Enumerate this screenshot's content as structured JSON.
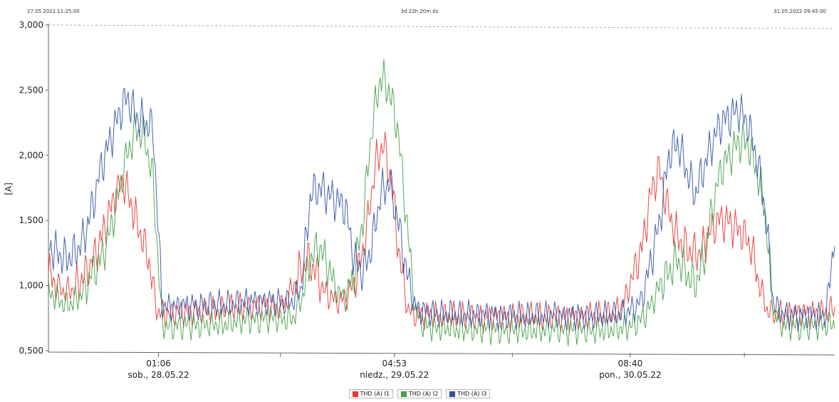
{
  "header": {
    "start": "27.05.2022 11:25:00",
    "duration": "3d 22h 20m 0s",
    "end": "31.05.2022 09:45:00"
  },
  "chart_data": {
    "type": "line",
    "title": "",
    "xlabel": "",
    "ylabel": "[A]",
    "ylim": [
      500,
      3000
    ],
    "y_ticks": [
      "0,500",
      "1,000",
      "1,500",
      "2,000",
      "2,500",
      "3,000"
    ],
    "x_ticks": [
      {
        "time": "01:06",
        "date": "sob., 28.05.22"
      },
      {
        "time": "04:53",
        "date": "niedz., 29.05.22"
      },
      {
        "time": "08:40",
        "date": "pon., 30.05.22"
      }
    ],
    "grid": false,
    "legend_position": "bottom",
    "series": [
      {
        "name": "THD (A) I1",
        "color": "#e8342f",
        "values": [
          1100,
          1000,
          950,
          980,
          1050,
          1150,
          1300,
          1500,
          1700,
          1800,
          1600,
          1400,
          1200,
          800,
          780,
          790,
          800,
          790,
          800,
          810,
          800,
          820,
          830,
          840,
          830,
          850,
          840,
          830,
          840,
          950,
          1100,
          1200,
          1100,
          950,
          900,
          880,
          950,
          1100,
          1400,
          1900,
          2100,
          1800,
          1200,
          800,
          780,
          770,
          780,
          760,
          770,
          760,
          770,
          760,
          750,
          760,
          760,
          750,
          760,
          760,
          770,
          750,
          760,
          760,
          750,
          760,
          760,
          770,
          770,
          780,
          800,
          900,
          1100,
          1300,
          1700,
          1900,
          1600,
          1400,
          1300,
          1250,
          1250,
          1400,
          1500,
          1500,
          1450,
          1400,
          1300,
          1000,
          800,
          790,
          780,
          780,
          790,
          780,
          790,
          800,
          820
        ]
      },
      {
        "name": "THD (A) I2",
        "color": "#43a047",
        "values": [
          950,
          900,
          850,
          880,
          950,
          1100,
          1200,
          1400,
          1700,
          2000,
          2200,
          2150,
          1800,
          700,
          680,
          690,
          700,
          690,
          700,
          710,
          700,
          720,
          730,
          740,
          730,
          750,
          750,
          740,
          750,
          900,
          1200,
          1300,
          1150,
          950,
          900,
          1100,
          1500,
          2200,
          2600,
          2500,
          2200,
          1500,
          800,
          690,
          680,
          670,
          680,
          660,
          670,
          660,
          670,
          660,
          650,
          660,
          660,
          650,
          660,
          660,
          670,
          650,
          660,
          660,
          650,
          660,
          660,
          670,
          680,
          700,
          750,
          850,
          1000,
          1100,
          1200,
          1100,
          1000,
          1200,
          1600,
          1900,
          2000,
          2100,
          2100,
          1900,
          1600,
          800,
          700,
          690,
          680,
          690,
          690,
          700,
          710
        ]
      },
      {
        "name": "THD (A) I3",
        "color": "#2f52a8",
        "values": [
          1300,
          1250,
          1200,
          1250,
          1350,
          1600,
          1900,
          2100,
          2300,
          2450,
          2300,
          2250,
          2200,
          850,
          830,
          840,
          850,
          840,
          850,
          860,
          850,
          860,
          870,
          880,
          870,
          880,
          880,
          870,
          880,
          1000,
          1700,
          1750,
          1700,
          1650,
          1600,
          1200,
          1100,
          1300,
          1700,
          1800,
          1500,
          1100,
          820,
          800,
          790,
          780,
          790,
          770,
          780,
          770,
          780,
          770,
          760,
          770,
          770,
          760,
          770,
          770,
          780,
          760,
          770,
          770,
          760,
          770,
          770,
          780,
          790,
          820,
          900,
          1200,
          1500,
          2000,
          2100,
          1900,
          1700,
          1900,
          2100,
          2250,
          2300,
          2350,
          2250,
          2000,
          1600,
          850,
          780,
          770,
          760,
          770,
          770,
          780,
          1400
        ]
      }
    ]
  }
}
